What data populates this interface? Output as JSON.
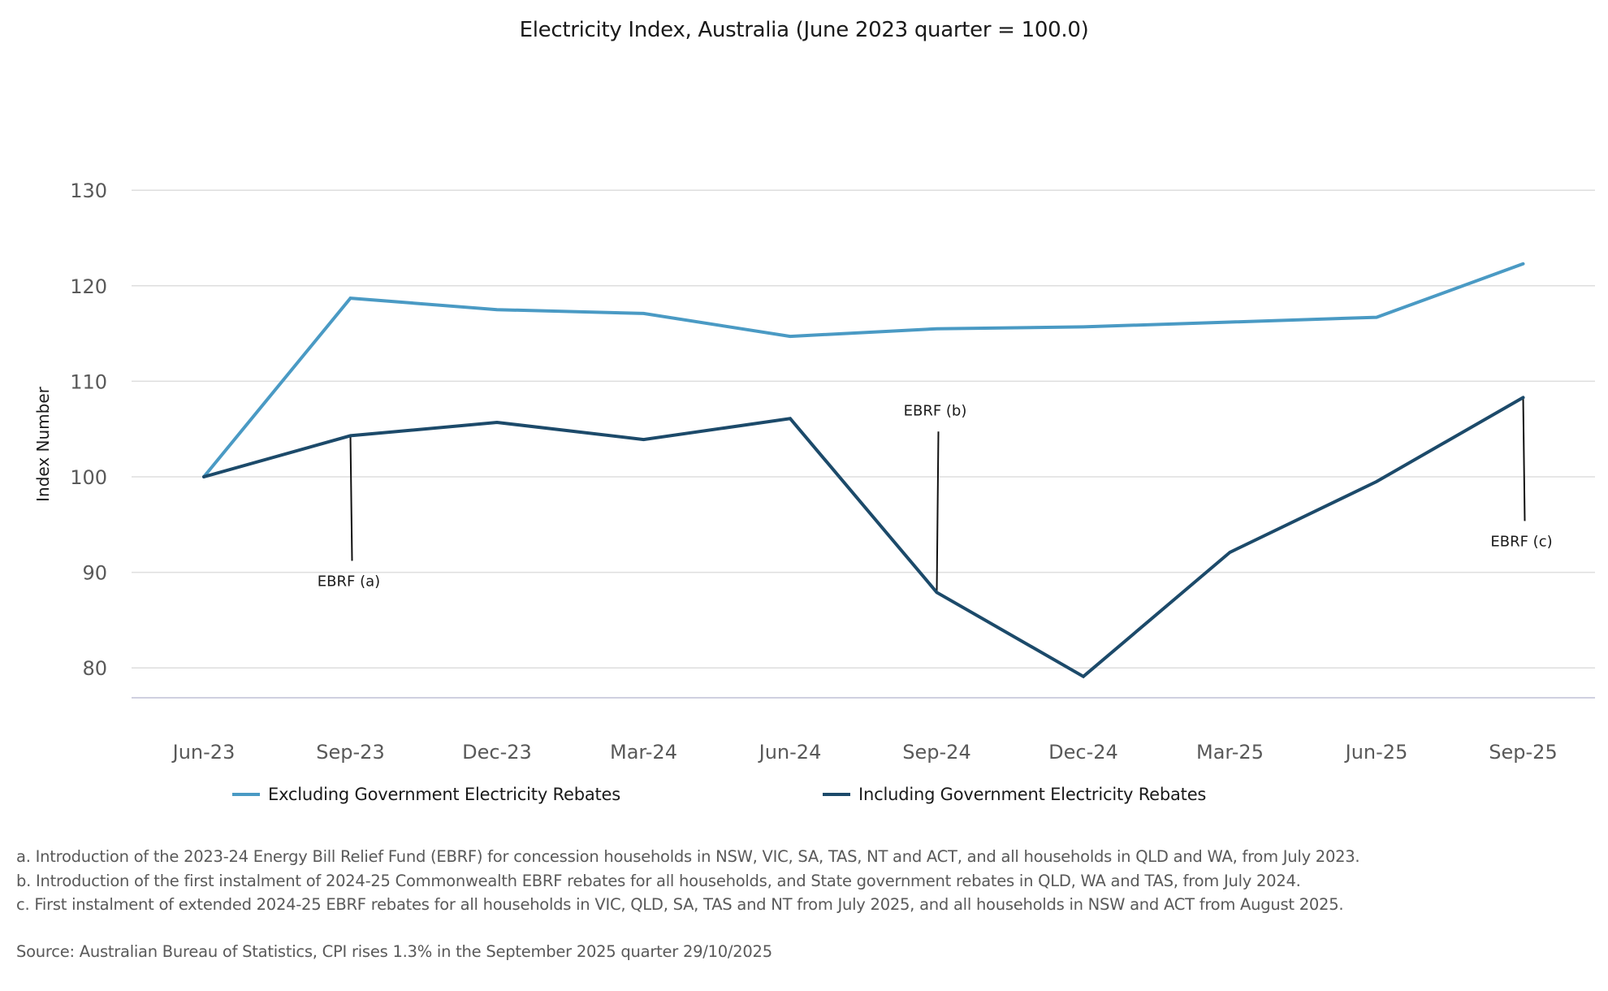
{
  "chart_data": {
    "type": "line",
    "title": "Electricity Index, Australia (June 2023 quarter = 100.0)",
    "xlabel": "",
    "ylabel": "Index Number",
    "categories": [
      "Jun-23",
      "Sep-23",
      "Dec-23",
      "Mar-24",
      "Jun-24",
      "Sep-24",
      "Dec-24",
      "Mar-25",
      "Jun-25",
      "Sep-25"
    ],
    "ylim": [
      76,
      130
    ],
    "yticks": [
      80,
      90,
      100,
      110,
      120,
      130
    ],
    "ytick_labels": [
      "80",
      "90",
      "100",
      "110",
      "120",
      "130"
    ],
    "grid": true,
    "legend_position": "bottom",
    "series": [
      {
        "name": "Excluding Government Electricity Rebates",
        "color": "#4A9AC4",
        "values": [
          100.0,
          118.7,
          117.5,
          117.1,
          114.7,
          115.5,
          115.7,
          116.2,
          116.7,
          122.3
        ]
      },
      {
        "name": "Including Government Electricity Rebates",
        "color": "#1C4A6A",
        "values": [
          100.0,
          104.3,
          105.7,
          103.9,
          106.1,
          87.9,
          79.1,
          92.1,
          99.5,
          108.3
        ]
      }
    ],
    "annotations": [
      {
        "label": "EBRF (a)",
        "series": 1,
        "category": "Sep-23",
        "placement": "below"
      },
      {
        "label": "EBRF (b)",
        "series": 1,
        "category": "Sep-24",
        "placement": "above"
      },
      {
        "label": "EBRF (c)",
        "series": 1,
        "category": "Sep-25",
        "placement": "below"
      }
    ]
  },
  "footnotes": [
    "a. Introduction of the 2023-24 Energy Bill Relief Fund (EBRF) for concession households in NSW, VIC, SA, TAS, NT and ACT, and all households in QLD and WA, from July 2023.",
    "b. Introduction of the first instalment of 2024-25 Commonwealth EBRF rebates for all households, and State government rebates in QLD, WA and TAS, from July 2024.",
    "c. First instalment of extended 2024-25 EBRF rebates for all households in VIC, QLD, SA, TAS and NT from July 2025, and all households in NSW and ACT from August 2025."
  ],
  "source": "Source: Australian Bureau of Statistics, CPI rises 1.3% in the September 2025 quarter 29/10/2025"
}
